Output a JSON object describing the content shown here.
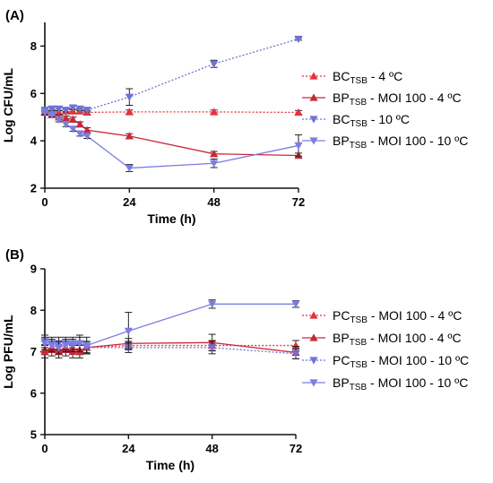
{
  "chart_data": [
    {
      "type": "line",
      "panel_label": "(A)",
      "xlabel": "Time (h)",
      "ylabel": "Log CFU/mL",
      "xlim": [
        0,
        72
      ],
      "ylim": [
        2,
        9
      ],
      "xticks": [
        0,
        24,
        48,
        72
      ],
      "yticks": [
        2,
        4,
        6,
        8
      ],
      "legend_position": "right",
      "series": [
        {
          "name_main": "BC",
          "name_sub": "TSB",
          "name_rest": " - 4 ºC",
          "color": "#e8313a",
          "line_style": "dotted",
          "marker": "triangle-up",
          "x": [
            0,
            2,
            4,
            6,
            8,
            10,
            12,
            24,
            48,
            72
          ],
          "y": [
            5.2,
            5.25,
            5.2,
            5.25,
            5.25,
            5.25,
            5.2,
            5.22,
            5.22,
            5.2
          ],
          "err": [
            0.08,
            0.08,
            0.08,
            0.08,
            0.08,
            0.08,
            0.08,
            0.08,
            0.08,
            0.08
          ]
        },
        {
          "name_main": "BP",
          "name_sub": "TSB",
          "name_rest": " - MOI 100 - 4 ºC",
          "color": "#c8283a",
          "line_style": "solid",
          "marker": "triangle-up",
          "x": [
            0,
            2,
            4,
            6,
            8,
            10,
            12,
            24,
            48,
            72
          ],
          "y": [
            5.2,
            5.1,
            5.0,
            4.95,
            4.9,
            4.7,
            4.45,
            4.2,
            3.45,
            3.38
          ],
          "err": [
            0.1,
            0.1,
            0.1,
            0.1,
            0.1,
            0.1,
            0.1,
            0.1,
            0.1,
            0.1
          ]
        },
        {
          "name_main": "BC",
          "name_sub": "TSB",
          "name_rest": " - 10 ºC",
          "color": "#6f71d6",
          "line_style": "dotted",
          "marker": "triangle-down",
          "x": [
            0,
            2,
            4,
            6,
            8,
            10,
            12,
            24,
            48,
            72
          ],
          "y": [
            5.3,
            5.35,
            5.35,
            5.3,
            5.4,
            5.35,
            5.3,
            5.85,
            7.25,
            8.3
          ],
          "err": [
            0.08,
            0.08,
            0.08,
            0.08,
            0.08,
            0.08,
            0.08,
            0.35,
            0.15,
            0.05
          ]
        },
        {
          "name_main": "BP",
          "name_sub": "TSB",
          "name_rest": " - MOI 100 - 10 ºC",
          "color": "#7b7ee0",
          "line_style": "solid",
          "marker": "triangle-down",
          "x": [
            0,
            2,
            4,
            6,
            8,
            10,
            12,
            24,
            48,
            72
          ],
          "y": [
            5.2,
            5.1,
            4.9,
            4.7,
            4.5,
            4.3,
            4.2,
            2.85,
            3.05,
            3.8
          ],
          "err": [
            0.1,
            0.1,
            0.1,
            0.1,
            0.1,
            0.1,
            0.1,
            0.15,
            0.18,
            0.45
          ]
        }
      ]
    },
    {
      "type": "line",
      "panel_label": "(B)",
      "xlabel": "Time (h)",
      "ylabel": "Log PFU/mL",
      "xlim": [
        0,
        72
      ],
      "ylim": [
        5,
        9
      ],
      "xticks": [
        0,
        24,
        48,
        72
      ],
      "yticks": [
        5,
        6,
        7,
        8,
        9
      ],
      "legend_position": "right",
      "series": [
        {
          "name_main": "PC",
          "name_sub": "TSB",
          "name_rest": " - MOI 100 - 4 ºC",
          "color": "#e8313a",
          "line_style": "dotted",
          "marker": "triangle-up",
          "x": [
            0,
            2,
            4,
            6,
            8,
            10,
            12,
            24,
            48,
            72
          ],
          "y": [
            7.05,
            7.1,
            7.05,
            7.1,
            7.1,
            7.05,
            7.1,
            7.15,
            7.15,
            7.15
          ],
          "err": [
            0.12,
            0.12,
            0.12,
            0.12,
            0.12,
            0.12,
            0.12,
            0.1,
            0.12,
            0.12
          ]
        },
        {
          "name_main": "BP",
          "name_sub": "TSB",
          "name_rest": " - MOI 100 - 4 ºC",
          "color": "#c8283a",
          "line_style": "solid",
          "marker": "triangle-up",
          "x": [
            0,
            2,
            4,
            6,
            8,
            10,
            12,
            24,
            48,
            72
          ],
          "y": [
            7.0,
            7.05,
            7.0,
            7.05,
            7.0,
            7.0,
            7.1,
            7.2,
            7.22,
            6.98
          ],
          "err": [
            0.15,
            0.15,
            0.15,
            0.15,
            0.15,
            0.15,
            0.15,
            0.12,
            0.2,
            0.15
          ]
        },
        {
          "name_main": "PC",
          "name_sub": "TSB",
          "name_rest": " - MOI 100 - 10 ºC",
          "color": "#6f71d6",
          "line_style": "dotted",
          "marker": "triangle-down",
          "x": [
            0,
            2,
            4,
            6,
            8,
            10,
            12,
            24,
            48,
            72
          ],
          "y": [
            7.25,
            7.2,
            7.2,
            7.2,
            7.15,
            7.2,
            7.1,
            7.1,
            7.1,
            6.95
          ],
          "err": [
            0.15,
            0.15,
            0.15,
            0.15,
            0.15,
            0.15,
            0.15,
            0.12,
            0.15,
            0.12
          ]
        },
        {
          "name_main": "BP",
          "name_sub": "TSB",
          "name_rest": " - MOI 100 - 10 ºC",
          "color": "#7b7ee0",
          "line_style": "solid",
          "marker": "triangle-down",
          "x": [
            0,
            2,
            4,
            6,
            8,
            10,
            12,
            24,
            48,
            72
          ],
          "y": [
            7.2,
            7.15,
            7.1,
            7.15,
            7.2,
            7.2,
            7.15,
            7.5,
            8.15,
            8.15
          ],
          "err": [
            0.15,
            0.15,
            0.15,
            0.15,
            0.15,
            0.2,
            0.2,
            0.45,
            0.1,
            0.08
          ]
        }
      ]
    }
  ]
}
